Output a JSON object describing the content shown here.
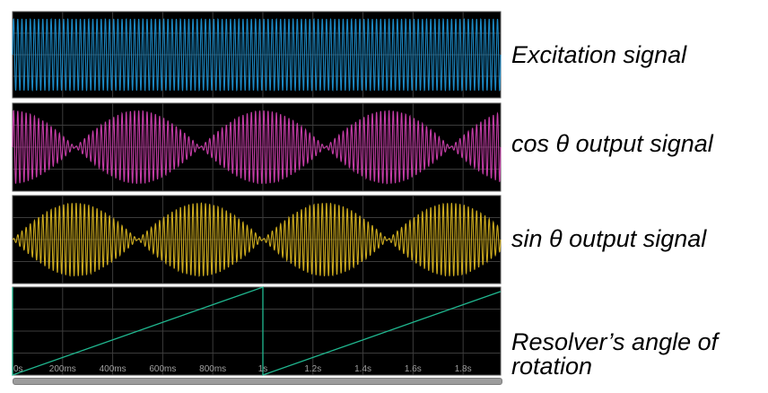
{
  "labels": {
    "excitation": "Excitation signal",
    "cos": "cos θ output signal",
    "sin": "sin θ output signal",
    "angle_line1": "Resolver’s angle of",
    "angle_line2": "rotation"
  },
  "colors": {
    "background": "#000000",
    "grid": "#3c3c3c",
    "excitation": "#1e90d0",
    "cos": "#d040b0",
    "sin": "#d8b420",
    "angle": "#20b890",
    "axis_text": "#a0a0a0"
  },
  "chart_data": [
    {
      "type": "line",
      "name": "excitation",
      "x_range": [
        0,
        1.95
      ],
      "y_range": [
        -1.2,
        1.2
      ],
      "grid": true,
      "carrier_cycles_per_second": 60,
      "amplitude": 1.0,
      "envelope": "constant"
    },
    {
      "type": "line",
      "name": "cos",
      "x_range": [
        0,
        1.95
      ],
      "y_range": [
        -1.2,
        1.2
      ],
      "grid": true,
      "carrier_cycles_per_second": 60,
      "amplitude": 1.0,
      "envelope": "|cos(2*pi*t)|",
      "rotation_period_s": 1.0
    },
    {
      "type": "line",
      "name": "sin",
      "x_range": [
        0,
        1.95
      ],
      "y_range": [
        -1.2,
        1.2
      ],
      "grid": true,
      "carrier_cycles_per_second": 60,
      "amplitude": 1.0,
      "envelope": "|sin(2*pi*t)|",
      "rotation_period_s": 1.0
    },
    {
      "type": "line",
      "name": "angle",
      "x_range": [
        0,
        1.95
      ],
      "y_range": [
        0,
        360
      ],
      "grid": true,
      "x_tick_labels": [
        "0s",
        "200ms",
        "400ms",
        "600ms",
        "800ms",
        "1s",
        "1.2s",
        "1.4s",
        "1.6s",
        "1.8s"
      ],
      "x_tick_values": [
        0,
        0.2,
        0.4,
        0.6,
        0.8,
        1.0,
        1.2,
        1.4,
        1.6,
        1.8
      ],
      "sawtooth": {
        "period_s": 1.0,
        "min": 0,
        "max": 360,
        "points": [
          [
            0,
            0
          ],
          [
            1.0,
            360
          ],
          [
            1.0,
            0
          ],
          [
            1.95,
            342
          ]
        ]
      }
    }
  ]
}
